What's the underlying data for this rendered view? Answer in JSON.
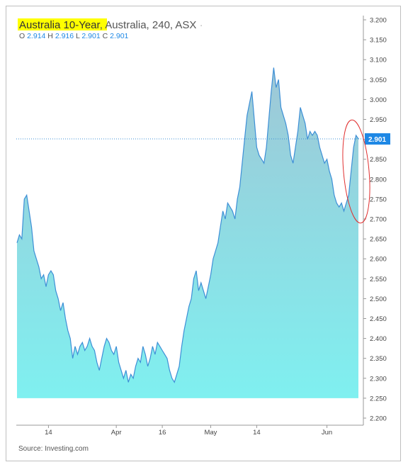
{
  "header": {
    "instrument": "Australia 10-Year",
    "details": ", Australia, 240, ASX",
    "separator": "·"
  },
  "ohlc": {
    "o_label": "O",
    "o_value": "2.914",
    "h_label": "H",
    "h_value": "2.916",
    "l_label": "L",
    "l_value": "2.901",
    "c_label": "C",
    "c_value": "2.901"
  },
  "price_marker": "2.901",
  "footer": {
    "source": "Source: Investing.com"
  },
  "colors": {
    "line": "#3d8fd6",
    "fill_top": "#9fc7d6",
    "fill_bottom": "#7ff0f0",
    "highlight": "#ffff00",
    "circle": "#e03030",
    "marker_bg": "#1e88e5"
  },
  "chart_data": {
    "type": "area",
    "title": "Australia 10-Year",
    "ylim": [
      2.2,
      3.2
    ],
    "yticks": [
      "2.200",
      "2.250",
      "2.300",
      "2.350",
      "2.400",
      "2.450",
      "2.500",
      "2.550",
      "2.600",
      "2.650",
      "2.700",
      "2.750",
      "2.800",
      "2.850",
      "2.900",
      "2.950",
      "3.000",
      "3.050",
      "3.100",
      "3.150",
      "3.200"
    ],
    "xticks": [
      "14",
      "Apr",
      "16",
      "May",
      "14",
      "Jun"
    ],
    "baseline": 2.25,
    "current_value": 2.901,
    "grid": false,
    "annotation": "red ellipse around latest rise",
    "values": [
      2.64,
      2.66,
      2.65,
      2.75,
      2.76,
      2.72,
      2.68,
      2.62,
      2.6,
      2.58,
      2.55,
      2.56,
      2.53,
      2.56,
      2.57,
      2.56,
      2.52,
      2.5,
      2.47,
      2.49,
      2.45,
      2.42,
      2.4,
      2.35,
      2.38,
      2.36,
      2.38,
      2.39,
      2.37,
      2.38,
      2.4,
      2.38,
      2.37,
      2.34,
      2.32,
      2.35,
      2.38,
      2.4,
      2.39,
      2.37,
      2.36,
      2.38,
      2.34,
      2.32,
      2.3,
      2.32,
      2.29,
      2.31,
      2.3,
      2.33,
      2.35,
      2.34,
      2.38,
      2.36,
      2.33,
      2.35,
      2.38,
      2.36,
      2.39,
      2.38,
      2.37,
      2.36,
      2.35,
      2.32,
      2.3,
      2.29,
      2.31,
      2.33,
      2.38,
      2.42,
      2.45,
      2.48,
      2.5,
      2.55,
      2.57,
      2.52,
      2.54,
      2.52,
      2.5,
      2.53,
      2.56,
      2.6,
      2.62,
      2.64,
      2.68,
      2.72,
      2.7,
      2.74,
      2.73,
      2.72,
      2.7,
      2.75,
      2.78,
      2.84,
      2.9,
      2.96,
      2.99,
      3.02,
      2.95,
      2.88,
      2.86,
      2.85,
      2.84,
      2.88,
      2.95,
      3.02,
      3.08,
      3.03,
      3.05,
      2.98,
      2.96,
      2.94,
      2.91,
      2.86,
      2.84,
      2.88,
      2.92,
      2.98,
      2.96,
      2.94,
      2.9,
      2.92,
      2.91,
      2.92,
      2.91,
      2.88,
      2.86,
      2.84,
      2.85,
      2.82,
      2.8,
      2.76,
      2.74,
      2.73,
      2.74,
      2.72,
      2.74,
      2.76,
      2.82,
      2.88,
      2.91,
      2.901
    ]
  }
}
